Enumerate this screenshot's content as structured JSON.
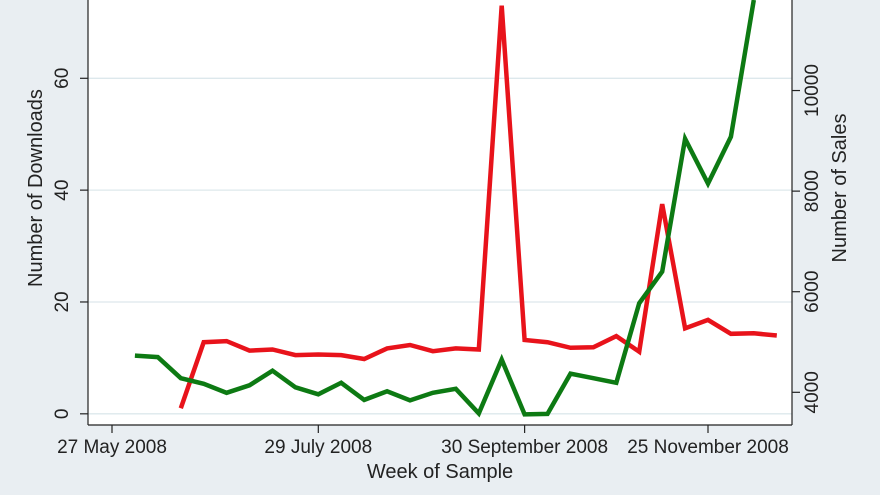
{
  "chart_data": {
    "type": "line",
    "xlabel": "Week of Sample",
    "ylabel_left": "Number of Downloads",
    "ylabel_right": "Number of Sales",
    "x_ticks": [
      "27 May 2008",
      "29 July 2008",
      "30 September 2008",
      "25 November 2008"
    ],
    "x_tick_dates": [
      "2008-05-27",
      "2008-07-29",
      "2008-09-30",
      "2008-11-25"
    ],
    "y_left_ticks": [
      0,
      20,
      40,
      60
    ],
    "y_left_range": [
      -2,
      74
    ],
    "y_right_ticks": [
      4000,
      6000,
      8000,
      10000
    ],
    "y_right_range": [
      3350,
      11800
    ],
    "grid": true,
    "colors": {
      "downloads": "#e8131b",
      "sales": "#0d7a13",
      "background": "#e9eef2",
      "plot": "#ffffff",
      "grid": "#dde8ec"
    },
    "series": [
      {
        "axis": "left",
        "color": "#e8131b",
        "points": [
          [
            "2008-06-17",
            1
          ],
          [
            "2008-06-24",
            12.8
          ],
          [
            "2008-07-01",
            13
          ],
          [
            "2008-07-08",
            11.3
          ],
          [
            "2008-07-15",
            11.5
          ],
          [
            "2008-07-22",
            10.5
          ],
          [
            "2008-07-29",
            10.6
          ],
          [
            "2008-08-05",
            10.5
          ],
          [
            "2008-08-12",
            9.8
          ],
          [
            "2008-08-19",
            11.7
          ],
          [
            "2008-08-26",
            12.3
          ],
          [
            "2008-09-02",
            11.2
          ],
          [
            "2008-09-09",
            11.7
          ],
          [
            "2008-09-16",
            11.5
          ],
          [
            "2008-09-23",
            73
          ],
          [
            "2008-09-30",
            13.2
          ],
          [
            "2008-10-07",
            12.8
          ],
          [
            "2008-10-14",
            11.8
          ],
          [
            "2008-10-21",
            11.9
          ],
          [
            "2008-10-28",
            13.9
          ],
          [
            "2008-11-04",
            11.1
          ],
          [
            "2008-11-11",
            37.5
          ],
          [
            "2008-11-18",
            15.3
          ],
          [
            "2008-11-25",
            16.8
          ],
          [
            "2008-12-02",
            14.3
          ],
          [
            "2008-12-09",
            14.4
          ],
          [
            "2008-12-16",
            14
          ]
        ]
      },
      {
        "axis": "right",
        "color": "#0d7a13",
        "points": [
          [
            "2008-06-03",
            4730
          ],
          [
            "2008-06-10",
            4700
          ],
          [
            "2008-06-17",
            4280
          ],
          [
            "2008-06-24",
            4170
          ],
          [
            "2008-07-01",
            3990
          ],
          [
            "2008-07-08",
            4140
          ],
          [
            "2008-07-15",
            4430
          ],
          [
            "2008-07-22",
            4100
          ],
          [
            "2008-07-29",
            3960
          ],
          [
            "2008-08-05",
            4190
          ],
          [
            "2008-08-12",
            3850
          ],
          [
            "2008-08-19",
            4020
          ],
          [
            "2008-08-26",
            3840
          ],
          [
            "2008-09-02",
            3990
          ],
          [
            "2008-09-09",
            4070
          ],
          [
            "2008-09-16",
            3580
          ],
          [
            "2008-09-23",
            4650
          ],
          [
            "2008-09-30",
            3560
          ],
          [
            "2008-10-07",
            3570
          ],
          [
            "2008-10-14",
            4370
          ],
          [
            "2008-10-21",
            4280
          ],
          [
            "2008-10-28",
            4190
          ],
          [
            "2008-11-04",
            5770
          ],
          [
            "2008-11-11",
            6400
          ],
          [
            "2008-11-18",
            9040
          ],
          [
            "2008-11-25",
            8150
          ],
          [
            "2008-12-02",
            9080
          ],
          [
            "2008-12-09",
            11800
          ]
        ]
      }
    ]
  }
}
